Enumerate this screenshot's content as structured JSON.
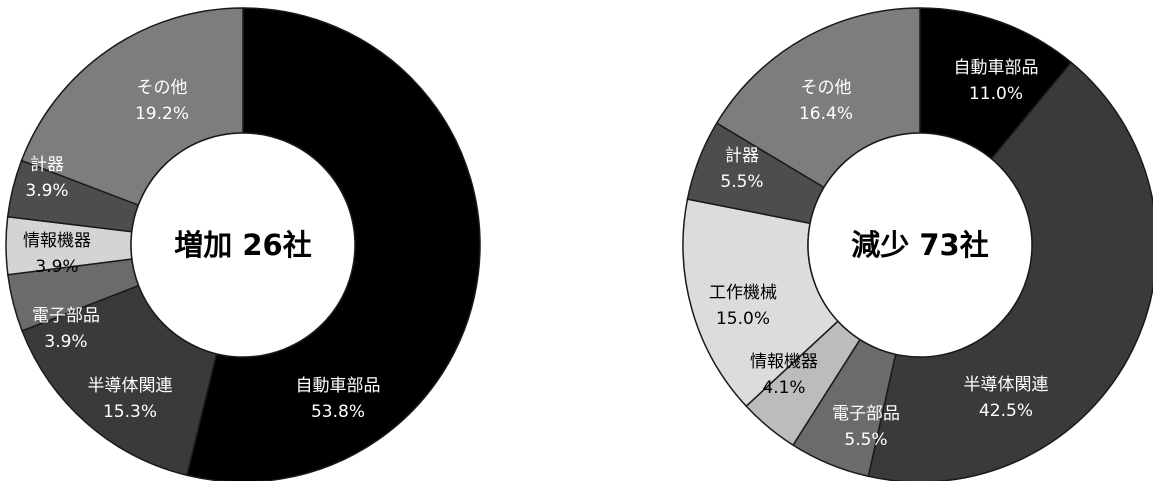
{
  "chart_data": [
    {
      "type": "pie",
      "center_label": "増加 26社",
      "slices": [
        {
          "name": "自動車部品",
          "value_label": "53.8%",
          "value": 53.8,
          "color": "#000000"
        },
        {
          "name": "半導体関連",
          "value_label": "15.3%",
          "value": 15.3,
          "color": "#3a3a3a"
        },
        {
          "name": "電子部品",
          "value_label": "3.9%",
          "value": 3.9,
          "color": "#6b6b6b"
        },
        {
          "name": "情報機器",
          "value_label": "3.9%",
          "value": 3.9,
          "color": "#d4d4d4"
        },
        {
          "name": "計器",
          "value_label": "3.9%",
          "value": 3.9,
          "color": "#4d4d4d"
        },
        {
          "name": "その他",
          "value_label": "19.2%",
          "value": 19.2,
          "color": "#7d7d7d"
        }
      ]
    },
    {
      "type": "pie",
      "center_label": "減少 73社",
      "slices": [
        {
          "name": "自動車部品",
          "value_label": "11.0%",
          "value": 11.0,
          "color": "#000000"
        },
        {
          "name": "半導体関連",
          "value_label": "42.5%",
          "value": 42.5,
          "color": "#3a3a3a"
        },
        {
          "name": "電子部品",
          "value_label": "5.5%",
          "value": 5.5,
          "color": "#6b6b6b"
        },
        {
          "name": "情報機器",
          "value_label": "4.1%",
          "value": 4.1,
          "color": "#bcbcbc"
        },
        {
          "name": "工作機械",
          "value_label": "15.0%",
          "value": 15.0,
          "color": "#dcdcdc"
        },
        {
          "name": "計器",
          "value_label": "5.5%",
          "value": 5.5,
          "color": "#4d4d4d"
        },
        {
          "name": "その他",
          "value_label": "16.4%",
          "value": 16.4,
          "color": "#7d7d7d"
        }
      ]
    }
  ]
}
